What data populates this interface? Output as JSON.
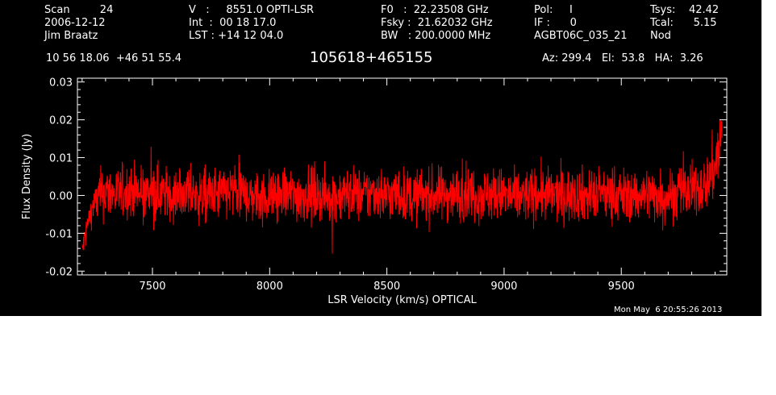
{
  "header": {
    "col1": [
      "Scan         24",
      "2006-12-12",
      "Jim Braatz"
    ],
    "col2": [
      "V   :     8551.0 OPTI-LSR",
      "Int  :  00 18 17.0",
      "LST : +14 12 04.0"
    ],
    "col3": [
      "F0   :  22.23508 GHz",
      "Fsky :  21.62032 GHz",
      "BW   : 200.0000 MHz"
    ],
    "col4": [
      "Pol:     I",
      "IF :      0",
      "AGBT06C_035_21"
    ],
    "col5": [
      "Tsys:    42.42",
      "Tcal:      5.15",
      "Nod"
    ],
    "coords": "10 56 18.06  +46 51 55.4",
    "source": "105618+465155",
    "azelha": "Az: 299.4   El:  53.8   HA:  3.26"
  },
  "timestamp": "Mon May  6 20:55:26 2013",
  "colors": {
    "background": "#000000",
    "axes": "#ffffff",
    "trace": "#ff0000"
  },
  "chart_data": {
    "type": "line",
    "xlabel": "LSR Velocity (km/s) OPTICAL",
    "ylabel": "Flux Density (Jy)",
    "xlim": [
      7180,
      9950
    ],
    "ylim": [
      -0.021,
      0.031
    ],
    "x_ticks": [
      7500,
      8000,
      8500,
      9000,
      9500
    ],
    "x_tick_labels": [
      "7500",
      "8000",
      "8500",
      "9000",
      "9500"
    ],
    "y_ticks": [
      -0.02,
      -0.01,
      0.0,
      0.01,
      0.02,
      0.03
    ],
    "y_tick_labels": [
      "-0.02",
      "-0.01",
      "0.00",
      "0.01",
      "0.02",
      "0.03"
    ],
    "grid": false,
    "series": [
      {
        "x": [
          7200,
          7215,
          7230,
          7245,
          7260,
          7280,
          7300,
          7350,
          7400,
          7450,
          7500,
          7550,
          7600,
          7650,
          7700,
          7750,
          7800,
          7850,
          7900,
          7950,
          8000,
          8050,
          8100,
          8150,
          8200,
          8250,
          8300,
          8350,
          8400,
          8450,
          8500,
          8550,
          8600,
          8650,
          8700,
          8750,
          8800,
          8850,
          8900,
          8950,
          9000,
          9050,
          9100,
          9150,
          9200,
          9250,
          9300,
          9350,
          9400,
          9450,
          9500,
          9550,
          9600,
          9650,
          9700,
          9750,
          9800,
          9830,
          9860,
          9880,
          9900,
          9915,
          9930
        ],
        "y": [
          -0.015,
          -0.01,
          -0.006,
          -0.003,
          -0.001,
          0.0,
          0.001,
          0.0,
          0.0015,
          0.0,
          0.001,
          0.0005,
          0.0,
          0.001,
          -0.0005,
          0.0,
          0.0005,
          0.001,
          0.0,
          -0.0005,
          0.0,
          0.0005,
          0.0,
          0.0,
          0.0005,
          -0.0005,
          0.0,
          0.0005,
          0.0,
          0.001,
          0.0,
          0.0005,
          -0.0005,
          0.0,
          0.0,
          0.0005,
          0.0,
          0.001,
          0.0,
          0.0005,
          0.0,
          -0.0005,
          0.0,
          0.0005,
          0.0,
          0.0,
          0.0005,
          0.0,
          0.0,
          0.0005,
          0.0,
          0.0,
          0.0005,
          0.0,
          0.0,
          0.0005,
          0.001,
          0.002,
          0.003,
          0.005,
          0.008,
          0.012,
          0.017
        ]
      }
    ]
  }
}
